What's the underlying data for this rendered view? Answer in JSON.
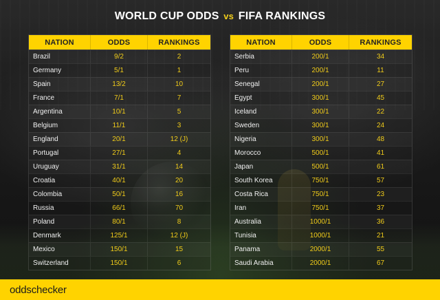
{
  "title": {
    "main": "WORLD CUP ODDS",
    "vs": "vs",
    "end": "FIFA RANKINGS"
  },
  "headers": [
    "NATION",
    "ODDS",
    "RANKINGS"
  ],
  "left_table": [
    {
      "nation": "Brazil",
      "odds": "9/2",
      "ranking": "2"
    },
    {
      "nation": "Germany",
      "odds": "5/1",
      "ranking": "1"
    },
    {
      "nation": "Spain",
      "odds": "13/2",
      "ranking": "10"
    },
    {
      "nation": "France",
      "odds": "7/1",
      "ranking": "7"
    },
    {
      "nation": "Argentina",
      "odds": "10/1",
      "ranking": "5"
    },
    {
      "nation": "Belgium",
      "odds": "11/1",
      "ranking": "3"
    },
    {
      "nation": "England",
      "odds": "20/1",
      "ranking": "12 (J)"
    },
    {
      "nation": "Portugal",
      "odds": "27/1",
      "ranking": "4"
    },
    {
      "nation": "Uruguay",
      "odds": "31/1",
      "ranking": "14"
    },
    {
      "nation": "Croatia",
      "odds": "40/1",
      "ranking": "20"
    },
    {
      "nation": "Colombia",
      "odds": "50/1",
      "ranking": "16"
    },
    {
      "nation": "Russia",
      "odds": "66/1",
      "ranking": "70"
    },
    {
      "nation": "Poland",
      "odds": "80/1",
      "ranking": "8"
    },
    {
      "nation": "Denmark",
      "odds": "125/1",
      "ranking": "12 (J)"
    },
    {
      "nation": "Mexico",
      "odds": "150/1",
      "ranking": "15"
    },
    {
      "nation": "Switzerland",
      "odds": "150/1",
      "ranking": "6"
    }
  ],
  "right_table": [
    {
      "nation": "Serbia",
      "odds": "200/1",
      "ranking": "34"
    },
    {
      "nation": "Peru",
      "odds": "200/1",
      "ranking": "11"
    },
    {
      "nation": "Senegal",
      "odds": "200/1",
      "ranking": "27"
    },
    {
      "nation": "Egypt",
      "odds": "300/1",
      "ranking": "45"
    },
    {
      "nation": "Iceland",
      "odds": "300/1",
      "ranking": "22"
    },
    {
      "nation": "Sweden",
      "odds": "300/1",
      "ranking": "24"
    },
    {
      "nation": "Nigeria",
      "odds": "300/1",
      "ranking": "48"
    },
    {
      "nation": "Morocco",
      "odds": "500/1",
      "ranking": "41"
    },
    {
      "nation": "Japan",
      "odds": "500/1",
      "ranking": "61"
    },
    {
      "nation": "South Korea",
      "odds": "750/1",
      "ranking": "57"
    },
    {
      "nation": "Costa Rica",
      "odds": "750/1",
      "ranking": "23"
    },
    {
      "nation": "Iran",
      "odds": "750/1",
      "ranking": "37"
    },
    {
      "nation": "Australia",
      "odds": "1000/1",
      "ranking": "36"
    },
    {
      "nation": "Tunisia",
      "odds": "1000/1",
      "ranking": "21"
    },
    {
      "nation": "Panama",
      "odds": "2000/1",
      "ranking": "55"
    },
    {
      "nation": "Saudi Arabia",
      "odds": "2000/1",
      "ranking": "67"
    }
  ],
  "brand": "oddschecker"
}
